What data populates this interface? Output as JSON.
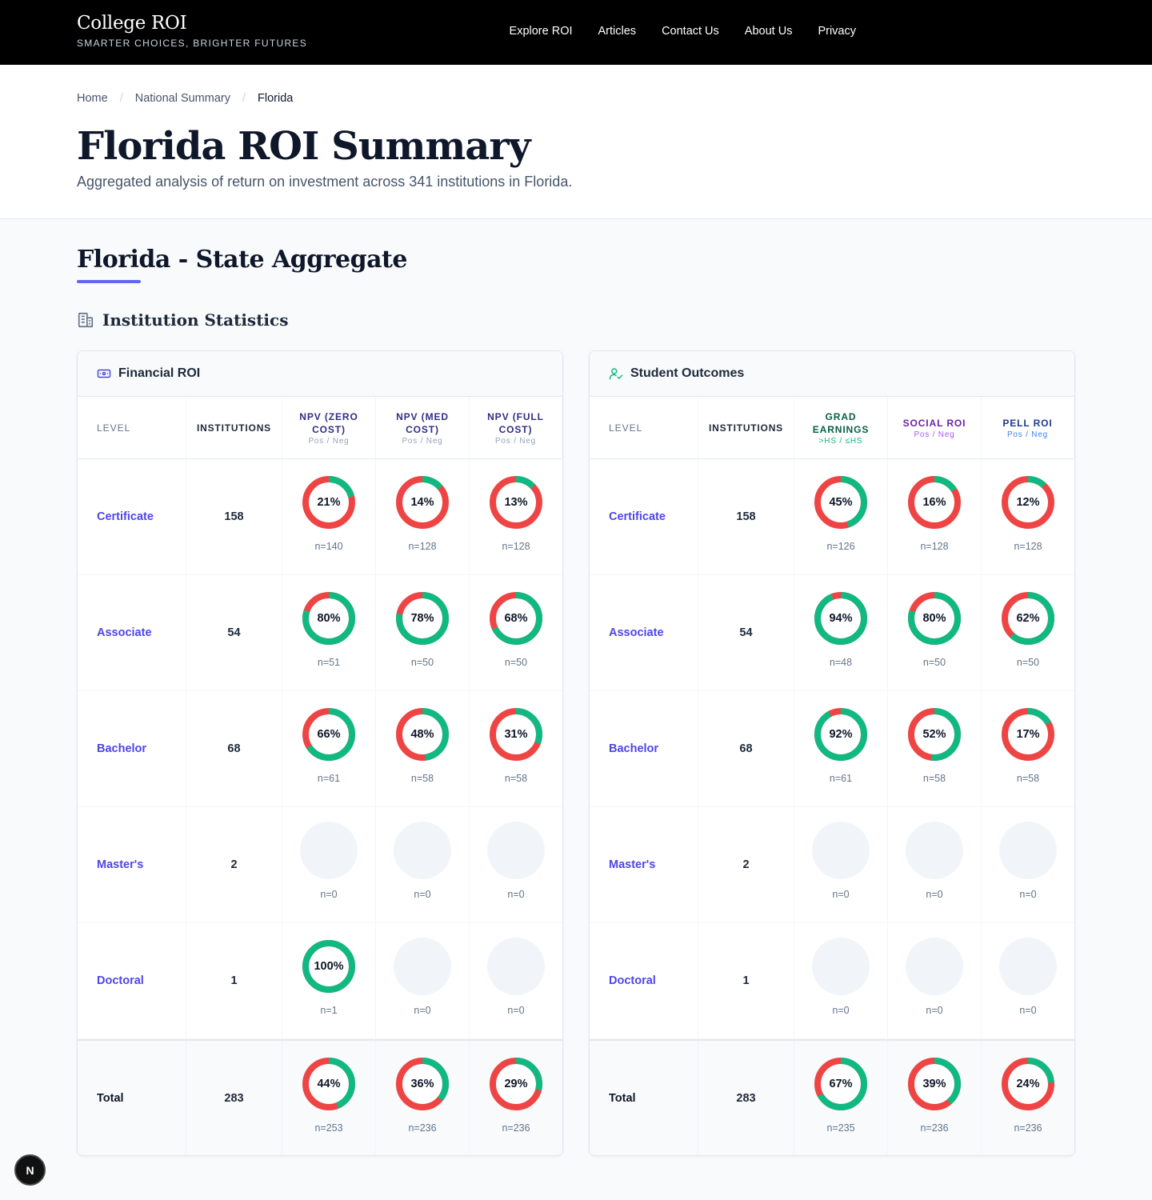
{
  "brand": {
    "title": "College ROI",
    "tagline": "SMARTER CHOICES, BRIGHTER FUTURES"
  },
  "nav": [
    "Explore ROI",
    "Articles",
    "Contact Us",
    "About Us",
    "Privacy"
  ],
  "breadcrumb": {
    "home": "Home",
    "national": "National Summary",
    "current": "Florida"
  },
  "hero": {
    "title": "Florida ROI Summary",
    "subtitle": "Aggregated analysis of return on investment across 341 institutions in Florida."
  },
  "section": {
    "title": "Florida - State Aggregate",
    "accent": "#6366f1"
  },
  "subsection": {
    "title": "Institution Statistics",
    "icon": "building-icon"
  },
  "colors": {
    "positive": "#10b981",
    "negative": "#ef4444",
    "empty": "#f1f5f9",
    "level_link": "#4f46e5"
  },
  "levels": [
    "Certificate",
    "Associate",
    "Bachelor",
    "Master's",
    "Doctoral",
    "Total"
  ],
  "institutions": [
    "158",
    "54",
    "68",
    "2",
    "1",
    "283"
  ],
  "financial": {
    "title": "Financial ROI",
    "icon": "banknote-icon",
    "level_header": "LEVEL",
    "inst_header": "INSTITUTIONS",
    "columns": [
      {
        "title": "NPV (ZERO COST)",
        "sub": "Pos / Neg",
        "title_color": "#312e81",
        "sub_color": "#94a3b8"
      },
      {
        "title": "NPV (MED COST)",
        "sub": "Pos / Neg",
        "title_color": "#312e81",
        "sub_color": "#94a3b8"
      },
      {
        "title": "NPV (FULL COST)",
        "sub": "Pos / Neg",
        "title_color": "#312e81",
        "sub_color": "#94a3b8"
      }
    ],
    "rows": [
      [
        {
          "pct": 21,
          "label": "21%",
          "n": "n=140"
        },
        {
          "pct": 14,
          "label": "14%",
          "n": "n=128"
        },
        {
          "pct": 13,
          "label": "13%",
          "n": "n=128"
        }
      ],
      [
        {
          "pct": 80,
          "label": "80%",
          "n": "n=51"
        },
        {
          "pct": 78,
          "label": "78%",
          "n": "n=50"
        },
        {
          "pct": 68,
          "label": "68%",
          "n": "n=50"
        }
      ],
      [
        {
          "pct": 66,
          "label": "66%",
          "n": "n=61"
        },
        {
          "pct": 48,
          "label": "48%",
          "n": "n=58"
        },
        {
          "pct": 31,
          "label": "31%",
          "n": "n=58"
        }
      ],
      [
        {
          "pct": null,
          "label": "",
          "n": "n=0"
        },
        {
          "pct": null,
          "label": "",
          "n": "n=0"
        },
        {
          "pct": null,
          "label": "",
          "n": "n=0"
        }
      ],
      [
        {
          "pct": 100,
          "label": "100%",
          "n": "n=1"
        },
        {
          "pct": null,
          "label": "",
          "n": "n=0"
        },
        {
          "pct": null,
          "label": "",
          "n": "n=0"
        }
      ],
      [
        {
          "pct": 44,
          "label": "44%",
          "n": "n=253"
        },
        {
          "pct": 36,
          "label": "36%",
          "n": "n=236"
        },
        {
          "pct": 29,
          "label": "29%",
          "n": "n=236"
        }
      ]
    ]
  },
  "outcomes": {
    "title": "Student Outcomes",
    "icon": "user-check-icon",
    "level_header": "LEVEL",
    "inst_header": "INSTITUTIONS",
    "columns": [
      {
        "title": "GRAD EARNINGS",
        "sub": ">HS / ≤HS",
        "title_color": "#065f46",
        "sub_color": "#10b981"
      },
      {
        "title": "SOCIAL ROI",
        "sub": "Pos / Neg",
        "title_color": "#6b21a8",
        "sub_color": "#a855f7"
      },
      {
        "title": "PELL ROI",
        "sub": "Pos / Neg",
        "title_color": "#1e3a8a",
        "sub_color": "#3b82f6"
      }
    ],
    "rows": [
      [
        {
          "pct": 45,
          "label": "45%",
          "n": "n=126"
        },
        {
          "pct": 16,
          "label": "16%",
          "n": "n=128"
        },
        {
          "pct": 12,
          "label": "12%",
          "n": "n=128"
        }
      ],
      [
        {
          "pct": 94,
          "label": "94%",
          "n": "n=48"
        },
        {
          "pct": 80,
          "label": "80%",
          "n": "n=50"
        },
        {
          "pct": 62,
          "label": "62%",
          "n": "n=50"
        }
      ],
      [
        {
          "pct": 92,
          "label": "92%",
          "n": "n=61"
        },
        {
          "pct": 52,
          "label": "52%",
          "n": "n=58"
        },
        {
          "pct": 17,
          "label": "17%",
          "n": "n=58"
        }
      ],
      [
        {
          "pct": null,
          "label": "",
          "n": "n=0"
        },
        {
          "pct": null,
          "label": "",
          "n": "n=0"
        },
        {
          "pct": null,
          "label": "",
          "n": "n=0"
        }
      ],
      [
        {
          "pct": null,
          "label": "",
          "n": "n=0"
        },
        {
          "pct": null,
          "label": "",
          "n": "n=0"
        },
        {
          "pct": null,
          "label": "",
          "n": "n=0"
        }
      ],
      [
        {
          "pct": 67,
          "label": "67%",
          "n": "n=235"
        },
        {
          "pct": 39,
          "label": "39%",
          "n": "n=236"
        },
        {
          "pct": 24,
          "label": "24%",
          "n": "n=236"
        }
      ]
    ]
  },
  "badge": {
    "letter": "N"
  }
}
